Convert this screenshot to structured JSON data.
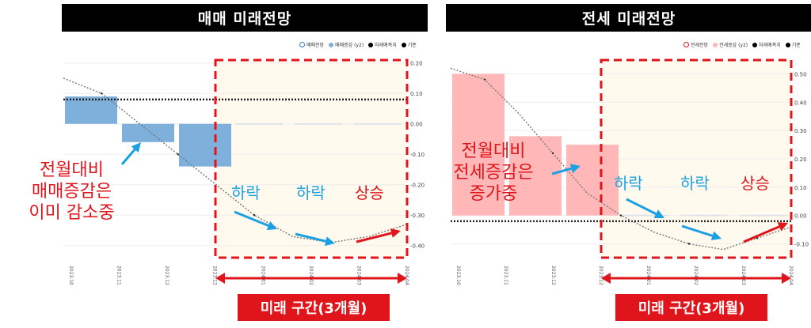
{
  "colors": {
    "sale_bar": "#7fb0dc",
    "jeonse_bar": "#ffb7b7",
    "future_bg": "#fff9ee",
    "dash_red": "#e0151b",
    "arrow_blue": "#1ba1e2",
    "arrow_red": "#e0151b"
  },
  "left": {
    "title": "매매 미래전망",
    "legend": [
      "매매전망",
      "매매증감 (y2)",
      "미래예측치",
      "기준"
    ],
    "note_lines": [
      "전월대비",
      "매매증감은",
      "이미 감소중"
    ],
    "trends": [
      "하락",
      "하락",
      "상승"
    ],
    "future_label": "미래 구간(3개월)"
  },
  "right": {
    "title": "전세 미래전망",
    "legend": [
      "전세전망",
      "전세증감 (y2)",
      "미래예측치",
      "기준"
    ],
    "note_lines": [
      "전월대비",
      "전세증감은",
      "증가중"
    ],
    "trends": [
      "하락",
      "하락",
      "상승"
    ],
    "future_label": "미래 구간(3개월)"
  },
  "chart_data": [
    {
      "type": "bar",
      "categories": [
        "2023.10",
        "2023.11",
        "2023.12",
        "2023.12",
        "2024.01",
        "2024.02",
        "2024.03",
        "2024.04"
      ],
      "y2_ticks": [
        "0.20",
        "0.10",
        "0.00",
        "-0.10",
        "-0.20",
        "-0.30",
        "-0.40"
      ],
      "bars": [
        {
          "x": "2023.10",
          "value": 0.09
        },
        {
          "x": "2023.11",
          "value": -0.06
        },
        {
          "x": "2023.12",
          "value": -0.14
        }
      ],
      "future_bars": [
        0.0,
        0.0,
        0.0
      ],
      "line_points": [
        0.15,
        0.1,
        0.0,
        -0.1,
        -0.2,
        -0.3,
        -0.37,
        -0.39,
        -0.37,
        -0.33
      ],
      "reference": 0.08,
      "ylim": [
        -0.45,
        0.22
      ]
    },
    {
      "type": "bar",
      "categories": [
        "2023.10",
        "2023.11",
        "2023.12",
        "2023.12",
        "2024.01",
        "2024.02",
        "2024.03",
        "2024.04"
      ],
      "y2_ticks": [
        "0.50",
        "0.40",
        "0.30",
        "0.20",
        "0.10",
        "0.00",
        "-0.10"
      ],
      "bars": [
        {
          "x": "2023.10",
          "value": 0.5
        },
        {
          "x": "2023.11",
          "value": 0.28
        },
        {
          "x": "2023.12",
          "value": 0.25
        }
      ],
      "future_bars": [
        0.0,
        0.0,
        0.0
      ],
      "line_points": [
        0.52,
        0.48,
        0.36,
        0.22,
        0.08,
        0.0,
        -0.06,
        -0.1,
        -0.12,
        -0.08,
        -0.04
      ],
      "reference": -0.02,
      "ylim": [
        -0.16,
        0.56
      ]
    }
  ]
}
